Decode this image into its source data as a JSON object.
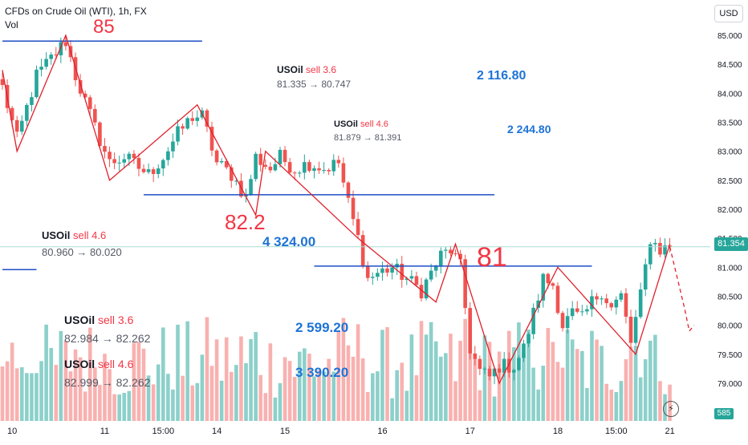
{
  "header": {
    "title": "CFDs on Crude Oil (WTI), 1h, FX",
    "vol_label": "Vol",
    "currency": "USD"
  },
  "price": {
    "last_label": "81.354",
    "volume_label": "585"
  },
  "colors": {
    "up": "#26a69a",
    "down": "#ef5350",
    "vol_up": "#80cbc4",
    "vol_down": "#f7a9a7",
    "level_line": "#1e4fc7",
    "trend_line": "#e0202c",
    "profit_text": "#1e73d6",
    "sell_text": "#f23645",
    "last_price_line": "#a8dcd6"
  },
  "annotations": {
    "level_85": "85",
    "level_82": "82.2",
    "level_81": "81",
    "trades": [
      {
        "symbol": "USOil",
        "action": "sell 3.6",
        "range": "81.335 → 80.747"
      },
      {
        "symbol": "USOil",
        "action": "sell 4.6",
        "range": "81.879 → 81.391"
      },
      {
        "symbol": "USOil",
        "action": "sell 4.6",
        "range": "80.960 → 80.020"
      },
      {
        "symbol": "USOil",
        "action": "sell 3.6",
        "range": "82.984 → 82.262"
      },
      {
        "symbol": "USOil",
        "action": "sell 4.6",
        "range": "82.999 → 82.262"
      }
    ],
    "profits": [
      "2 116.80",
      "2 244.80",
      "4 324.00",
      "2 599.20",
      "3 390.20"
    ]
  },
  "chart_data": {
    "type": "candlestick",
    "title": "CFDs on Crude Oil (WTI), 1h, FX",
    "xlabel": "",
    "ylabel": "USD",
    "ylim": [
      78.6,
      85.3
    ],
    "y_ticks": [
      "85.000",
      "84.500",
      "84.000",
      "83.500",
      "83.000",
      "82.500",
      "82.000",
      "81.500",
      "81.000",
      "80.500",
      "80.000",
      "79.500",
      "79.000"
    ],
    "y_tick_values": [
      85.0,
      84.5,
      84.0,
      83.5,
      83.0,
      82.5,
      82.0,
      81.5,
      81.0,
      80.5,
      80.0,
      79.5,
      79.0
    ],
    "x_ticks": [
      "10",
      "11",
      "15:00",
      "14",
      "15",
      "16",
      "17",
      "18",
      "15:00",
      "21"
    ],
    "x_tick_bars": [
      2,
      21,
      33,
      44,
      58,
      78,
      96,
      114,
      126,
      137
    ],
    "bar_count": 138,
    "last_price": 81.354,
    "horizontal_levels": [
      {
        "price": 84.9,
        "from_bar": 0,
        "to_bar": 41
      },
      {
        "price": 82.25,
        "from_bar": 29,
        "to_bar": 101
      },
      {
        "price": 81.02,
        "from_bar": 64,
        "to_bar": 121
      },
      {
        "price": 80.96,
        "from_bar": 0,
        "to_bar": 7
      }
    ],
    "close_anchors": [
      [
        0,
        84.1
      ],
      [
        3,
        83.2
      ],
      [
        7,
        84.3
      ],
      [
        10,
        84.6
      ],
      [
        13,
        84.9
      ],
      [
        15,
        84.3
      ],
      [
        19,
        83.4
      ],
      [
        22,
        82.8
      ],
      [
        25,
        82.9
      ],
      [
        30,
        82.6
      ],
      [
        33,
        82.9
      ],
      [
        36,
        83.3
      ],
      [
        39,
        83.6
      ],
      [
        41,
        83.6
      ],
      [
        44,
        82.8
      ],
      [
        47,
        82.6
      ],
      [
        50,
        82.2
      ],
      [
        52,
        82.9
      ],
      [
        55,
        82.7
      ],
      [
        57,
        82.9
      ],
      [
        60,
        82.7
      ],
      [
        63,
        82.8
      ],
      [
        66,
        82.7
      ],
      [
        69,
        82.8
      ],
      [
        71,
        82.1
      ],
      [
        73,
        81.5
      ],
      [
        75,
        80.8
      ],
      [
        77,
        80.9
      ],
      [
        80,
        81.0
      ],
      [
        83,
        80.8
      ],
      [
        86,
        80.6
      ],
      [
        88,
        80.9
      ],
      [
        90,
        81.2
      ],
      [
        92,
        81.3
      ],
      [
        94,
        81.0
      ],
      [
        96,
        79.6
      ],
      [
        98,
        79.2
      ],
      [
        100,
        79.1
      ],
      [
        102,
        79.3
      ],
      [
        105,
        79.3
      ],
      [
        107,
        79.6
      ],
      [
        109,
        80.2
      ],
      [
        111,
        80.8
      ],
      [
        113,
        80.7
      ],
      [
        115,
        80.0
      ],
      [
        117,
        80.2
      ],
      [
        119,
        80.1
      ],
      [
        121,
        80.4
      ],
      [
        123,
        80.6
      ],
      [
        125,
        80.3
      ],
      [
        127,
        80.5
      ],
      [
        129,
        79.7
      ],
      [
        131,
        80.5
      ],
      [
        133,
        81.5
      ],
      [
        135,
        81.3
      ],
      [
        137,
        81.354
      ]
    ],
    "projection": [
      [
        137,
        81.354
      ],
      [
        140,
        80.3
      ],
      [
        141,
        79.9
      ],
      [
        142,
        80.0
      ]
    ],
    "volume": {
      "ylim": [
        0,
        2400
      ],
      "last": 585
    }
  }
}
